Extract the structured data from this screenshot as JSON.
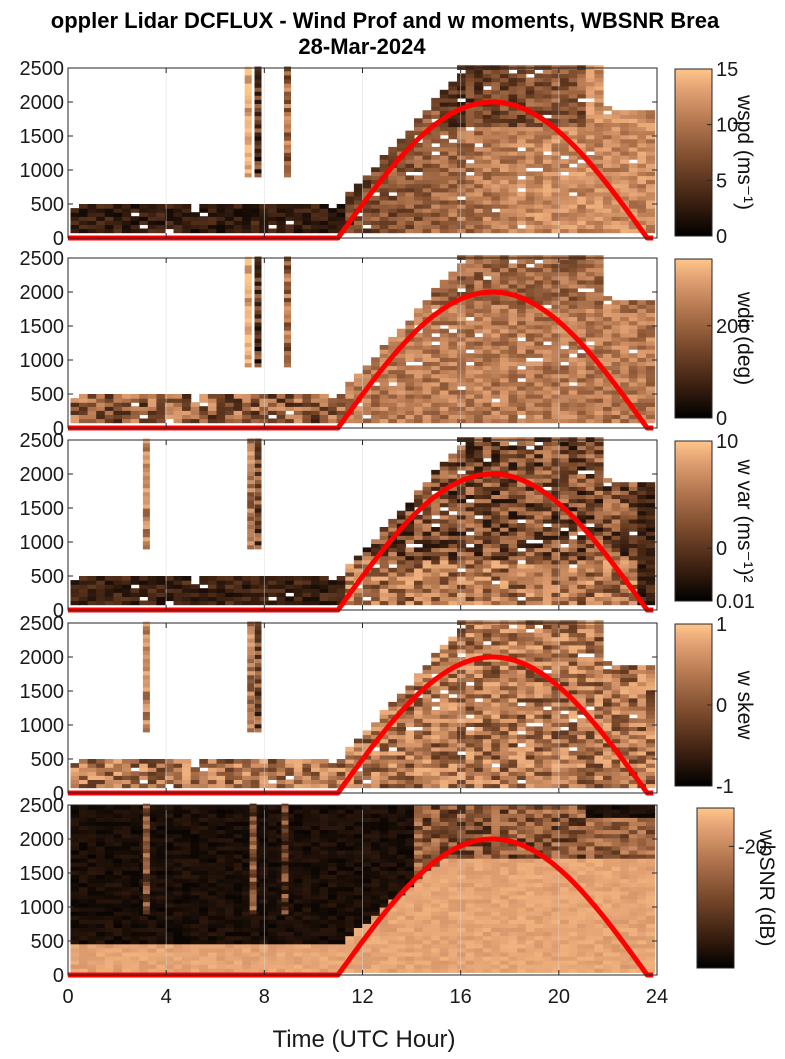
{
  "figure": {
    "title_line1": "oppler Lidar DCFLUX - Wind Prof and w moments, WBSNR Brea",
    "title_line2": "28-Mar-2024",
    "xlabel": "Time (UTC Hour)"
  },
  "colors": {
    "colormap": [
      "#000000",
      "#3a1f10",
      "#7a4a2c",
      "#b77a52",
      "#e3a274",
      "#ffc68a"
    ],
    "sun_curve": "#ff0000"
  },
  "chart_data": [
    {
      "type": "heatmap",
      "variable": "wspd",
      "colorbar_label": "wspd (ms⁻¹)",
      "colorbar_ticks": [
        "15",
        "10",
        "5",
        "0"
      ],
      "clim": [
        0,
        15
      ],
      "x_ticks": [
        "0",
        "4",
        "8",
        "12",
        "16",
        "20",
        "24"
      ],
      "y_ticks": [
        "2500",
        "2000",
        "1500",
        "1000",
        "500",
        "0"
      ],
      "xlim": [
        0,
        24
      ],
      "ylim": [
        0,
        2500
      ],
      "grid": true,
      "sun_curve": {
        "start_hour": 11,
        "peak_hour": 17.2,
        "end_hour": 23.6,
        "peak_height": 2000
      }
    },
    {
      "type": "heatmap",
      "variable": "wdir",
      "colorbar_label": "wdir (deg)",
      "colorbar_ticks": [
        "200",
        "0"
      ],
      "clim": [
        0,
        360
      ],
      "x_ticks": [
        "0",
        "4",
        "8",
        "12",
        "16",
        "20",
        "24"
      ],
      "y_ticks": [
        "2500",
        "2000",
        "1500",
        "1000",
        "500",
        "0"
      ],
      "xlim": [
        0,
        24
      ],
      "ylim": [
        0,
        2500
      ],
      "grid": true,
      "sun_curve": {
        "start_hour": 11,
        "peak_hour": 17.2,
        "end_hour": 23.6,
        "peak_height": 2000
      }
    },
    {
      "type": "heatmap",
      "variable": "w var",
      "colorbar_label": "w var (ms⁻¹)²",
      "colorbar_ticks": [
        "10",
        "0",
        "0.01"
      ],
      "scale": "log",
      "clim": [
        0.01,
        10
      ],
      "x_ticks": [
        "0",
        "4",
        "8",
        "12",
        "16",
        "20",
        "24"
      ],
      "y_ticks": [
        "2500",
        "2000",
        "1500",
        "1000",
        "500",
        "0"
      ],
      "xlim": [
        0,
        24
      ],
      "ylim": [
        0,
        2500
      ],
      "grid": true,
      "sun_curve": {
        "start_hour": 11,
        "peak_hour": 17.2,
        "end_hour": 23.6,
        "peak_height": 2000
      }
    },
    {
      "type": "heatmap",
      "variable": "w skew",
      "colorbar_label": "w skew",
      "colorbar_ticks": [
        "1",
        "0",
        "-1"
      ],
      "clim": [
        -1,
        1
      ],
      "x_ticks": [
        "0",
        "4",
        "8",
        "12",
        "16",
        "20",
        "24"
      ],
      "y_ticks": [
        "2500",
        "2000",
        "1500",
        "1000",
        "500",
        "0"
      ],
      "xlim": [
        0,
        24
      ],
      "ylim": [
        0,
        2500
      ],
      "grid": true,
      "sun_curve": {
        "start_hour": 11,
        "peak_hour": 17.2,
        "end_hour": 23.6,
        "peak_height": 2000
      }
    },
    {
      "type": "heatmap",
      "variable": "wbSNR",
      "colorbar_label": "wbSNR (dB)",
      "colorbar_ticks": [
        "-20"
      ],
      "x_ticks": [
        "0",
        "4",
        "8",
        "12",
        "16",
        "20",
        "24"
      ],
      "y_ticks": [
        "2500",
        "2000",
        "1500",
        "1000",
        "500",
        "0"
      ],
      "xlim": [
        0,
        24
      ],
      "ylim": [
        0,
        2500
      ],
      "grid": true,
      "sun_curve": {
        "start_hour": 11,
        "peak_hour": 17.2,
        "end_hour": 23.6,
        "peak_height": 2000
      }
    }
  ]
}
